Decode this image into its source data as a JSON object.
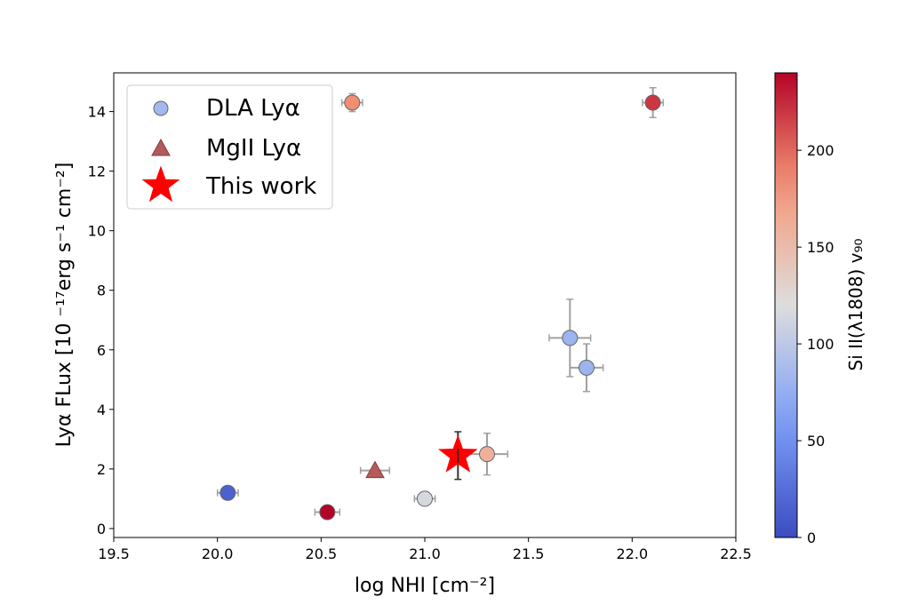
{
  "chart_data": {
    "type": "scatter",
    "title": "",
    "xlabel": "log NHI [cm⁻²]",
    "ylabel": "Lyα FLux [10 ⁻¹⁷erg s⁻¹ cm⁻²]",
    "xlim": [
      19.5,
      22.5
    ],
    "ylim": [
      -0.3,
      15.3
    ],
    "xticks": [
      19.5,
      20.0,
      20.5,
      21.0,
      21.5,
      22.0,
      22.5
    ],
    "yticks": [
      0,
      2,
      4,
      6,
      8,
      10,
      12,
      14
    ],
    "grid": false,
    "legend_position": "upper-left",
    "colorbar": {
      "label": "Si II(λ1808) v₉₀",
      "colormap": "coolwarm",
      "range": [
        0,
        240
      ],
      "ticks": [
        0,
        50,
        100,
        150,
        200
      ]
    },
    "series": [
      {
        "name": "DLA Lyα",
        "marker": "circle",
        "points": [
          {
            "x": 20.05,
            "y": 1.2,
            "xerr": 0.05,
            "yerr": 0.1,
            "c": 15
          },
          {
            "x": 20.53,
            "y": 0.55,
            "xerr": 0.06,
            "yerr": 0.1,
            "c": 240
          },
          {
            "x": 21.0,
            "y": 1.0,
            "xerr": 0.05,
            "yerr": 0.1,
            "c": 115
          },
          {
            "x": 21.3,
            "y": 2.5,
            "xerr": 0.1,
            "yerr": 0.7,
            "c": 160
          },
          {
            "x": 21.7,
            "y": 6.4,
            "xerr": 0.1,
            "yerr": 1.3,
            "c": 80
          },
          {
            "x": 21.78,
            "y": 5.4,
            "xerr": 0.08,
            "yerr": 0.8,
            "c": 80
          },
          {
            "x": 20.65,
            "y": 14.3,
            "xerr": 0.05,
            "yerr": 0.3,
            "c": 185
          },
          {
            "x": 22.1,
            "y": 14.3,
            "xerr": 0.05,
            "yerr": 0.5,
            "c": 220
          }
        ]
      },
      {
        "name": "MgII Lyα",
        "marker": "triangle",
        "points": [
          {
            "x": 20.76,
            "y": 1.95,
            "xerr": 0.07,
            "yerr": 0.1,
            "c": 220
          }
        ]
      },
      {
        "name": "This work",
        "marker": "star",
        "color": "#ff0000",
        "points": [
          {
            "x": 21.16,
            "y": 2.45,
            "xerr": 0.02,
            "yerr": 0.8
          }
        ]
      }
    ]
  }
}
